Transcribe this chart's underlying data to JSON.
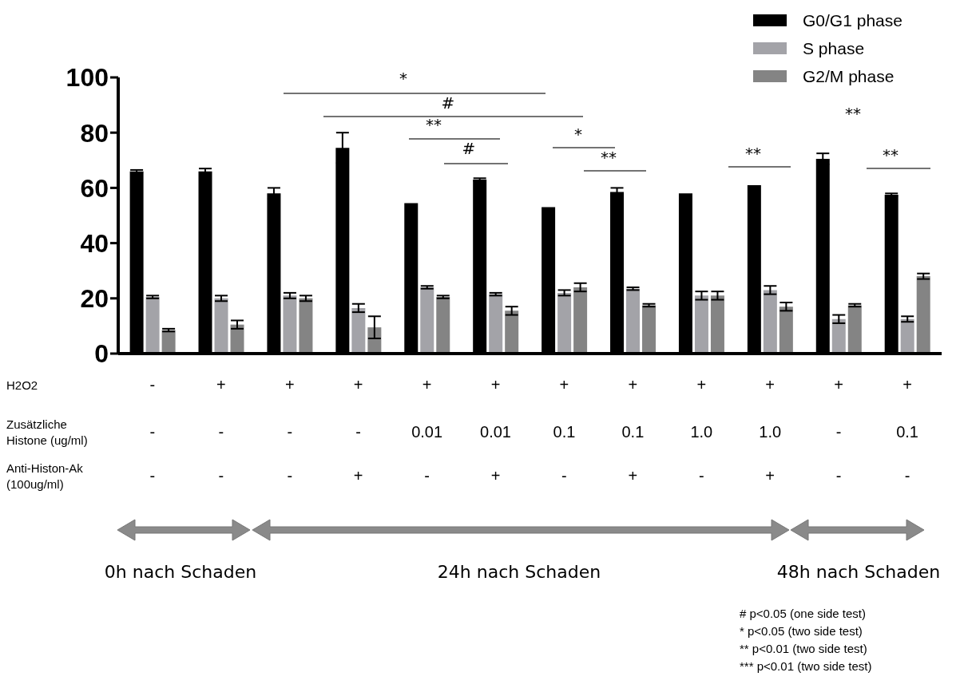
{
  "chart_data": {
    "type": "bar",
    "categories": [
      null,
      null,
      null,
      null,
      null,
      null,
      null,
      null,
      null,
      null,
      null,
      null
    ],
    "series": [
      {
        "name": "G0/G1 phase",
        "color": "#000000",
        "values": [
          66,
          66,
          58,
          74.5,
          54.5,
          63,
          53,
          58.5,
          58,
          61,
          70.5,
          57.5
        ],
        "errors": [
          0.5,
          1,
          2,
          5.5,
          0,
          0.5,
          0,
          1.5,
          0,
          0,
          2,
          0.5
        ]
      },
      {
        "name": "S phase",
        "color": "#a3a3a8",
        "values": [
          20.5,
          20,
          21,
          16.5,
          24,
          21.5,
          22,
          23.5,
          21,
          23,
          12.5,
          12.5
        ],
        "errors": [
          0.5,
          1,
          1,
          1.5,
          0.5,
          0.5,
          1,
          0.5,
          1.5,
          1.5,
          1.5,
          1
        ]
      },
      {
        "name": "G2/M phase",
        "color": "#848484",
        "values": [
          8.5,
          10.5,
          20,
          9.5,
          20.5,
          15.5,
          24,
          17.5,
          21,
          17,
          17.5,
          28
        ],
        "errors": [
          0.5,
          1.5,
          1,
          4,
          0.5,
          1.5,
          1.5,
          0.5,
          1.5,
          1.5,
          0.5,
          1
        ]
      }
    ],
    "ylim": [
      0,
      100
    ],
    "yticks": [
      0,
      20,
      40,
      60,
      80,
      100
    ],
    "grid": false,
    "legend": "top right",
    "tick_labels": "y",
    "annotations": [
      "H2O2",
      "Zusätzliche Histone (ug/ml)",
      "Anti-Histon-Ak (100ug/ml)",
      "-",
      "+",
      "+",
      "+",
      "+",
      "+",
      "+",
      "+",
      "+",
      "+",
      "+",
      "+",
      "-",
      "-",
      "-",
      "-",
      "0.01",
      "0.01",
      "0.1",
      "0.1",
      "1.0",
      "1.0",
      "-",
      "0.1",
      "-",
      "-",
      "-",
      "+",
      "-",
      "+",
      "-",
      "+",
      "-",
      "+",
      "-",
      "-",
      "0h nach Schaden",
      "24h nach Schaden",
      "48h nach Schaden",
      "*",
      "#",
      "**",
      "#",
      "*",
      "**",
      "**",
      "**",
      "**",
      "# p<0.05 (one side test)",
      "* p<0.05 (two side test)",
      "** p<0.01 (two side test)",
      "*** p<0.01 (two side test)"
    ]
  }
}
